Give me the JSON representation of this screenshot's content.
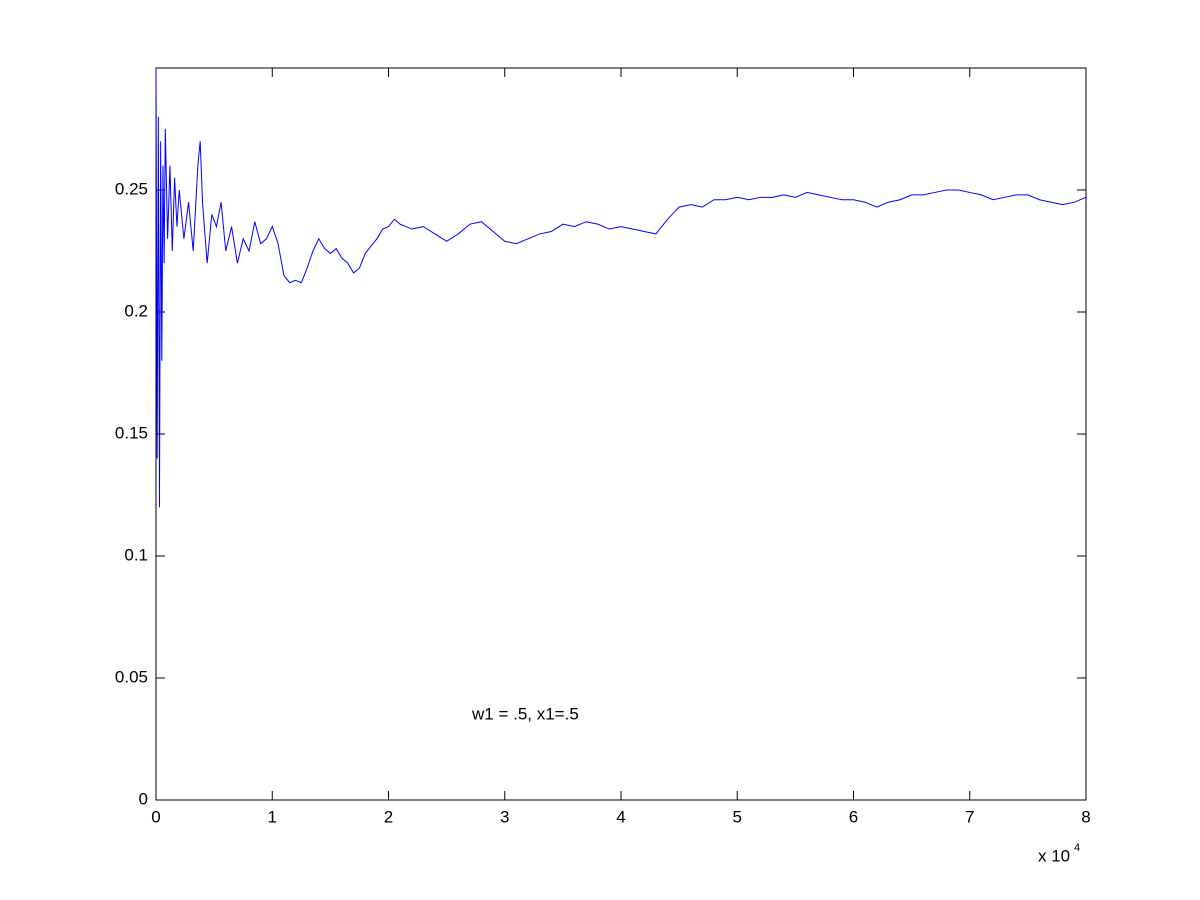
{
  "chart_data": {
    "type": "line",
    "annotation": "w1 = .5,  x1=.5",
    "x_multiplier": "x 10",
    "x_exponent": "4",
    "xlim": [
      0,
      80000
    ],
    "xticks": [
      {
        "value": 0,
        "label": "0"
      },
      {
        "value": 10000,
        "label": "1"
      },
      {
        "value": 20000,
        "label": "2"
      },
      {
        "value": 30000,
        "label": "3"
      },
      {
        "value": 40000,
        "label": "4"
      },
      {
        "value": 50000,
        "label": "5"
      },
      {
        "value": 60000,
        "label": "6"
      },
      {
        "value": 70000,
        "label": "7"
      },
      {
        "value": 80000,
        "label": "8"
      }
    ],
    "ylim": [
      0,
      0.3
    ],
    "yticks": [
      0,
      0.05,
      0.1,
      0.15,
      0.2,
      0.25,
      0.3
    ],
    "ytick_labels_shown": 6,
    "grid": false,
    "series": [
      {
        "color": "#0000ff",
        "x": [
          0,
          100,
          200,
          300,
          400,
          500,
          600,
          700,
          800,
          1000,
          1200,
          1400,
          1600,
          1800,
          2000,
          2400,
          2800,
          3200,
          3600,
          3800,
          4000,
          4400,
          4800,
          5200,
          5600,
          6000,
          6500,
          7000,
          7500,
          8000,
          8500,
          9000,
          9500,
          10000,
          10500,
          11000,
          11500,
          12000,
          12500,
          13000,
          13500,
          14000,
          14500,
          15000,
          15500,
          16000,
          16500,
          17000,
          17500,
          18000,
          18500,
          19000,
          19500,
          20000,
          20500,
          21000,
          22000,
          23000,
          24000,
          25000,
          26000,
          27000,
          28000,
          29000,
          30000,
          31000,
          32000,
          33000,
          34000,
          35000,
          36000,
          37000,
          38000,
          39000,
          40000,
          41000,
          42000,
          43000,
          44000,
          45000,
          46000,
          47000,
          48000,
          49000,
          50000,
          51000,
          52000,
          53000,
          54000,
          55000,
          56000,
          57000,
          58000,
          59000,
          60000,
          61000,
          62000,
          63000,
          64000,
          65000,
          66000,
          67000,
          68000,
          69000,
          70000,
          71000,
          72000,
          73000,
          74000,
          75000,
          76000,
          77000,
          78000,
          79000,
          80000
        ],
        "values": [
          0.3,
          0.14,
          0.28,
          0.12,
          0.27,
          0.18,
          0.26,
          0.22,
          0.275,
          0.23,
          0.26,
          0.225,
          0.255,
          0.235,
          0.25,
          0.23,
          0.245,
          0.225,
          0.26,
          0.27,
          0.245,
          0.22,
          0.24,
          0.235,
          0.245,
          0.225,
          0.235,
          0.22,
          0.23,
          0.225,
          0.237,
          0.228,
          0.23,
          0.235,
          0.228,
          0.215,
          0.212,
          0.213,
          0.212,
          0.218,
          0.225,
          0.23,
          0.226,
          0.224,
          0.226,
          0.222,
          0.22,
          0.216,
          0.218,
          0.224,
          0.227,
          0.23,
          0.234,
          0.235,
          0.238,
          0.236,
          0.234,
          0.235,
          0.232,
          0.229,
          0.232,
          0.236,
          0.237,
          0.233,
          0.229,
          0.228,
          0.23,
          0.232,
          0.233,
          0.236,
          0.235,
          0.237,
          0.236,
          0.234,
          0.235,
          0.234,
          0.233,
          0.232,
          0.238,
          0.243,
          0.244,
          0.243,
          0.246,
          0.246,
          0.247,
          0.246,
          0.247,
          0.247,
          0.248,
          0.247,
          0.249,
          0.248,
          0.247,
          0.246,
          0.246,
          0.245,
          0.243,
          0.245,
          0.246,
          0.248,
          0.248,
          0.249,
          0.25,
          0.25,
          0.249,
          0.248,
          0.246,
          0.247,
          0.248,
          0.248,
          0.246,
          0.245,
          0.244,
          0.245,
          0.247
        ]
      }
    ]
  }
}
